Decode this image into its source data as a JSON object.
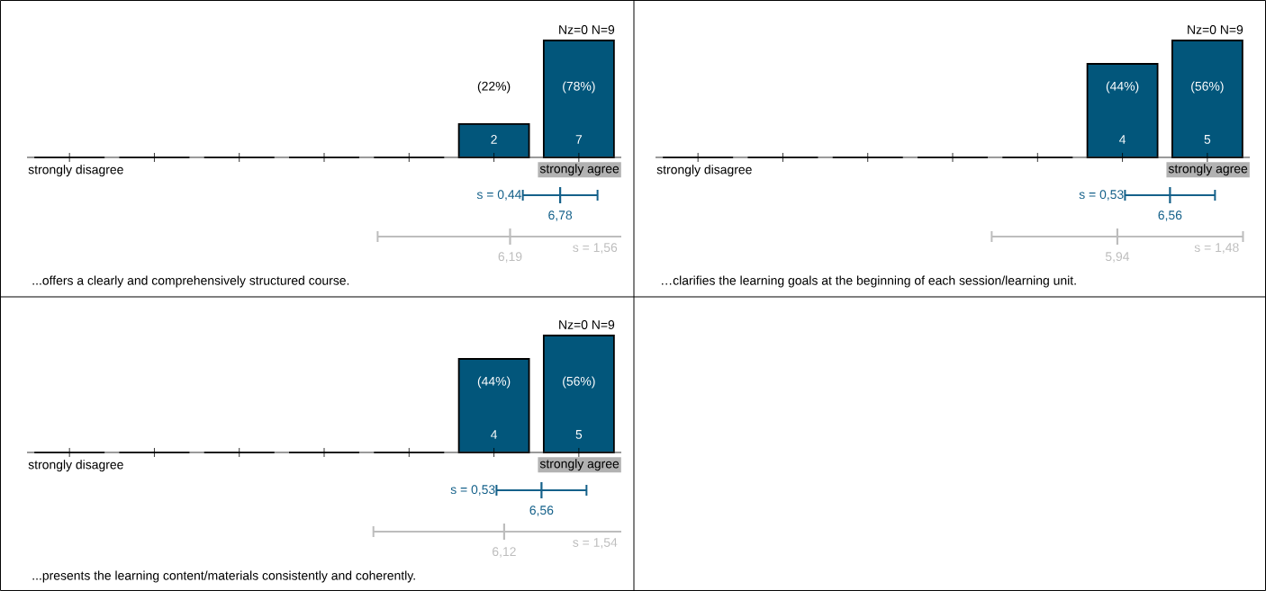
{
  "chart_data": [
    {
      "type": "bar",
      "title": "...offers a clearly and comprehensively structured course.",
      "categories": [
        "strongly disagree",
        null,
        null,
        null,
        null,
        null,
        "strongly agree"
      ],
      "values": [
        0,
        0,
        0,
        0,
        0,
        2,
        7
      ],
      "color": "#02567b",
      "value_labels": [
        null,
        null,
        null,
        null,
        null,
        "2",
        "7"
      ],
      "annotations": [
        "Nz=0  N=9",
        "(22%)",
        "(78%)",
        "6,78",
        "s = 0,44",
        "6,19",
        "s = 1,56"
      ]
    },
    {
      "type": "bar",
      "title": "…clarifies the learning goals at the beginning of each session/learning unit.",
      "categories": [
        "strongly disagree",
        null,
        null,
        null,
        null,
        null,
        "strongly agree"
      ],
      "values": [
        0,
        0,
        0,
        0,
        0,
        4,
        5
      ],
      "color": "#02567b",
      "value_labels": [
        null,
        null,
        null,
        null,
        null,
        "4",
        "5"
      ],
      "annotations": [
        "Nz=0  N=9",
        "(44%)",
        "(56%)",
        "6,56",
        "s = 0,53",
        "5,94",
        "s = 1,48"
      ]
    },
    {
      "type": "bar",
      "title": "...presents the learning content/materials consistently and coherently.",
      "categories": [
        "strongly disagree",
        null,
        null,
        null,
        null,
        null,
        "strongly agree"
      ],
      "values": [
        0,
        0,
        0,
        0,
        0,
        4,
        5
      ],
      "color": "#02567b",
      "value_labels": [
        null,
        null,
        null,
        null,
        null,
        "4",
        "5"
      ],
      "annotations": [
        "Nz=0  N=9",
        "(44%)",
        "(56%)",
        "6,56",
        "s = 0,53",
        "6,12",
        "s = 1,54"
      ]
    }
  ]
}
